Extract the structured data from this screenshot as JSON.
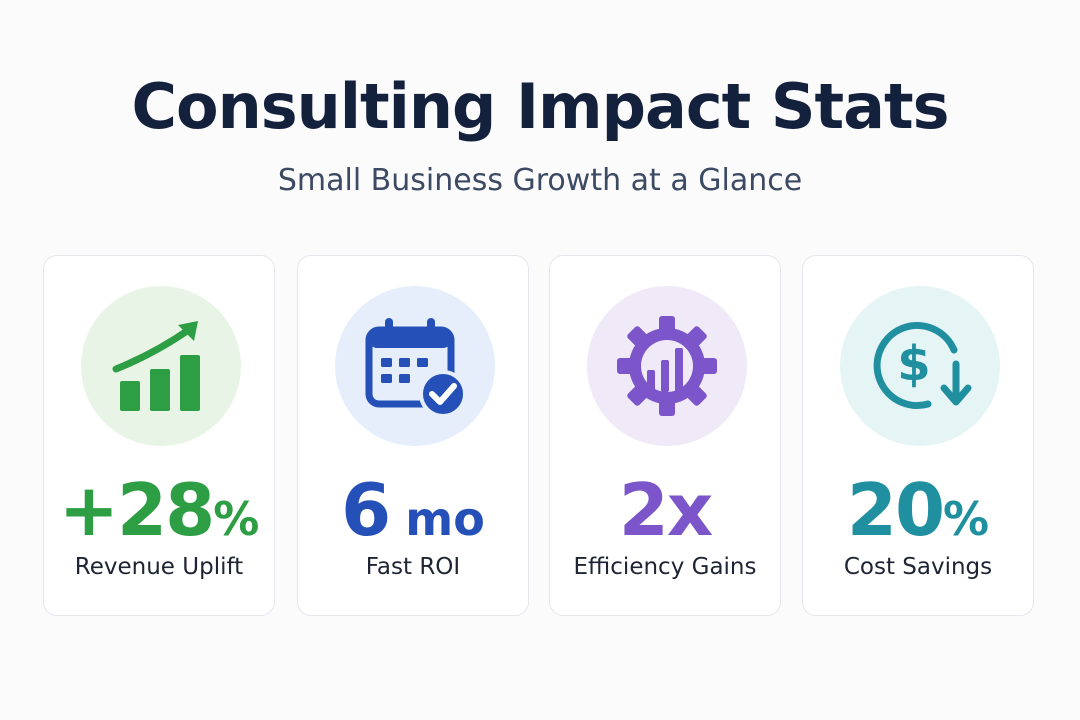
{
  "title": "Consulting Impact Stats",
  "subtitle": "Small Business Growth at a Glance",
  "cards": [
    {
      "value_main": "+28",
      "value_suffix": "%",
      "label": "Revenue Uplift",
      "icon": "rising-bar-chart-icon",
      "accent": "#2e9e45",
      "icon_bg": "#e8f5e6"
    },
    {
      "value_main": "6",
      "value_suffix": " mo",
      "label": "Fast ROI",
      "icon": "calendar-check-icon",
      "accent": "#2450b8",
      "icon_bg": "#e6eefb"
    },
    {
      "value_main": "2x",
      "value_suffix": "",
      "label": "Efficiency Gains",
      "icon": "gear-chart-icon",
      "accent": "#7b55c9",
      "icon_bg": "#efe9f8"
    },
    {
      "value_main": "20",
      "value_suffix": "%",
      "label": "Cost Savings",
      "icon": "dollar-down-arrow-icon",
      "accent": "#2090a0",
      "icon_bg": "#e5f4f5"
    }
  ]
}
